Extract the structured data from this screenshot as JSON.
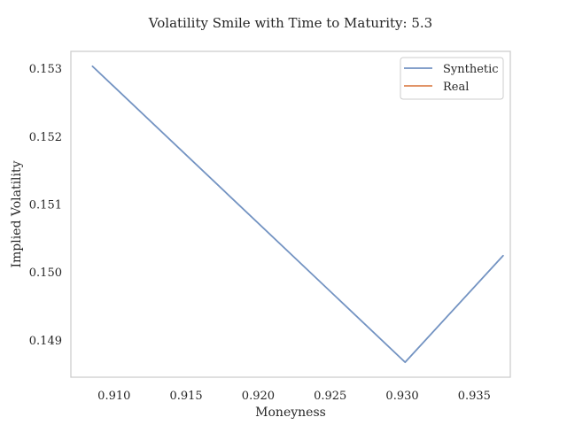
{
  "chart_data": {
    "type": "line",
    "title": "Volatility Smile with Time to Maturity: 5.3",
    "xlabel": "Moneyness",
    "ylabel": "Implied Volatility",
    "xlim": [
      0.907,
      0.9375
    ],
    "ylim": [
      0.14845,
      0.15325
    ],
    "xticks": [
      0.91,
      0.915,
      0.92,
      0.925,
      0.93,
      0.935
    ],
    "xtick_labels": [
      "0.910",
      "0.915",
      "0.920",
      "0.925",
      "0.930",
      "0.935"
    ],
    "yticks": [
      0.149,
      0.15,
      0.151,
      0.152,
      0.153
    ],
    "ytick_labels": [
      "0.149",
      "0.150",
      "0.151",
      "0.152",
      "0.153"
    ],
    "grid": false,
    "legend_position": "top-right",
    "series": [
      {
        "name": "Synthetic",
        "color": "#7393c2",
        "x": [
          0.9085,
          0.9302,
          0.937
        ],
        "y": [
          0.15303,
          0.14867,
          0.15024
        ]
      },
      {
        "name": "Real",
        "color": "#dd8452",
        "x": [],
        "y": []
      }
    ]
  }
}
